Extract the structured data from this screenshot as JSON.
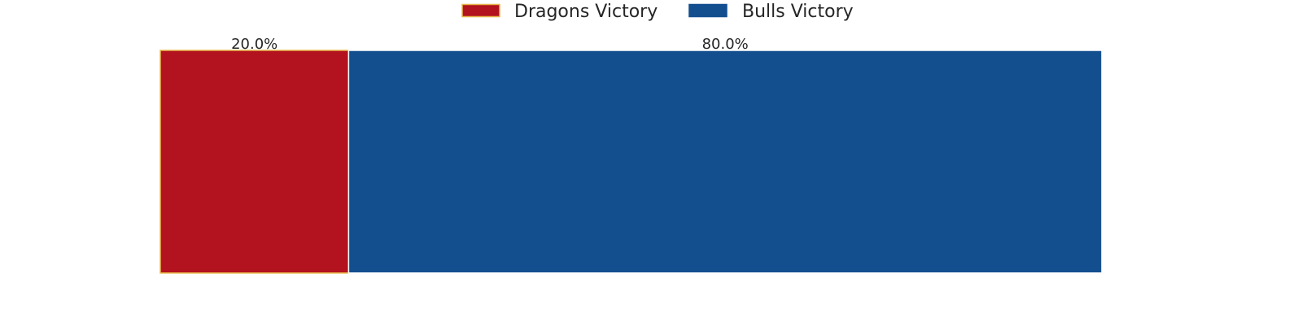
{
  "chart_data": {
    "type": "bar",
    "orientation": "horizontal",
    "stacked": true,
    "series": [
      {
        "name": "Dragons Victory",
        "value": 20.0,
        "label": "20.0%",
        "color": "#b3121f",
        "edge_color": "#e8b84a"
      },
      {
        "name": "Bulls Victory",
        "value": 80.0,
        "label": "80.0%",
        "color": "#134f8f",
        "edge_color": "#ffffff"
      }
    ],
    "xlim": [
      0,
      100
    ],
    "unit": "%",
    "legend": {
      "placement": "top-center",
      "columns": 2
    },
    "grid": false,
    "axes_visible": false,
    "title": "",
    "xlabel": "",
    "ylabel": ""
  }
}
